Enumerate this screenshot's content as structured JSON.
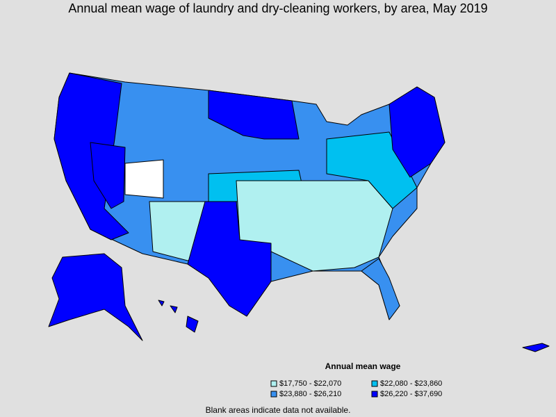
{
  "title": "Annual mean wage of laundry and dry-cleaning workers, by area, May 2019",
  "legend": {
    "title": "Annual mean wage",
    "items": [
      {
        "label": "$17,750 - $22,070",
        "color": "#b0f0f0"
      },
      {
        "label": "$22,080 - $23,860",
        "color": "#00c0f0"
      },
      {
        "label": "$23,880 - $26,210",
        "color": "#3890f0"
      },
      {
        "label": "$26,220 - $37,690",
        "color": "#0000ff"
      }
    ]
  },
  "note": "Blank areas indicate data not available."
}
